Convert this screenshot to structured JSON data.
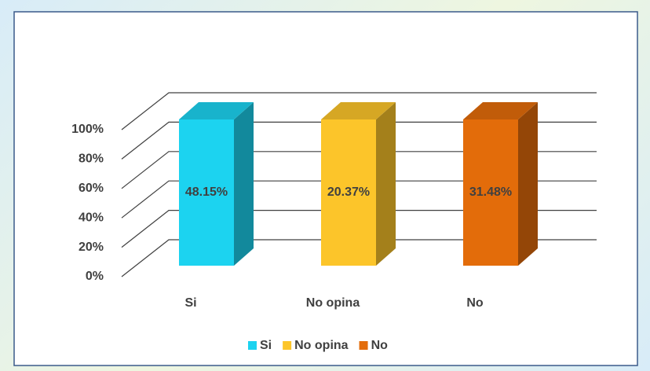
{
  "chart_data": {
    "type": "bar",
    "stacking": "percent",
    "categories": [
      "Si",
      "No opina",
      "No"
    ],
    "series": [
      {
        "name": "Si",
        "color": "#1cd3f0",
        "values": [
          48.15,
          null,
          null
        ],
        "value_labels": [
          "48.15%",
          null,
          null
        ]
      },
      {
        "name": "No opina",
        "color": "#fcc52a",
        "values": [
          null,
          20.37,
          null
        ],
        "value_labels": [
          null,
          "20.37%",
          null
        ]
      },
      {
        "name": "No",
        "color": "#e36c0a",
        "values": [
          null,
          null,
          31.48
        ],
        "value_labels": [
          null,
          null,
          "31.48%"
        ]
      }
    ],
    "ylim": [
      0,
      100
    ],
    "yticks": [
      {
        "value": 0,
        "label": "0%"
      },
      {
        "value": 20,
        "label": "20%"
      },
      {
        "value": 40,
        "label": "40%"
      },
      {
        "value": 60,
        "label": "60%"
      },
      {
        "value": 80,
        "label": "80%"
      },
      {
        "value": 100,
        "label": "100%"
      }
    ],
    "grid": true,
    "legend": "bottom"
  }
}
